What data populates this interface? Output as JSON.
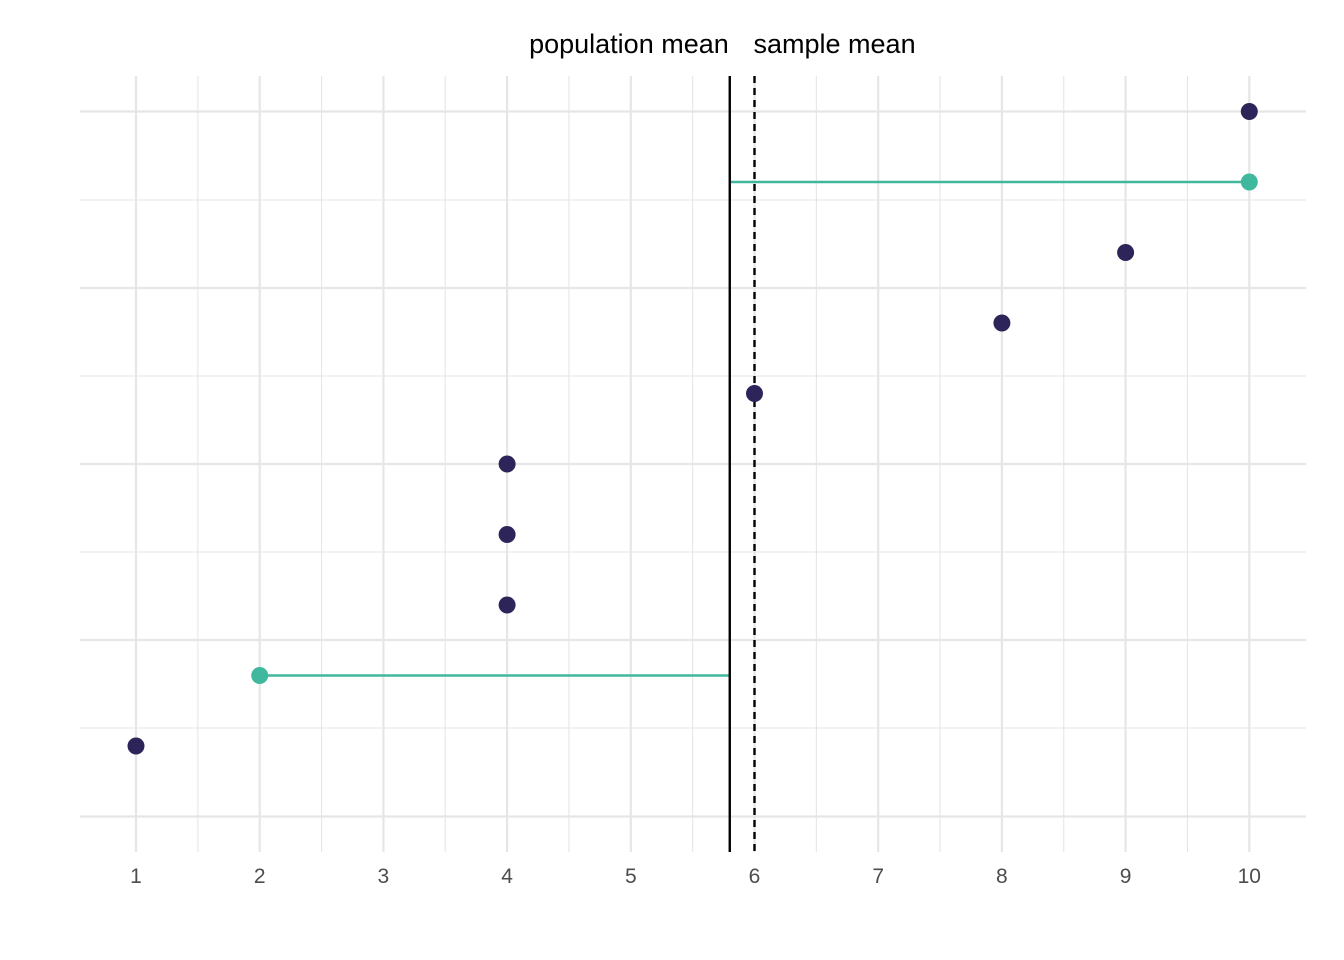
{
  "chart_data": {
    "type": "scatter",
    "title": "",
    "xlabel": "",
    "ylabel": "",
    "xlim": [
      0.55,
      10.45
    ],
    "ylim": [
      0.5,
      10.5
    ],
    "x_ticks": [
      "1",
      "2",
      "3",
      "4",
      "5",
      "6",
      "7",
      "8",
      "9",
      "10"
    ],
    "grid": true,
    "annotations": {
      "population_mean_label": "population mean",
      "sample_mean_label": "sample mean"
    },
    "population_mean": 5.8,
    "sample_mean": 6.0,
    "points": [
      {
        "y": 1,
        "x": 1,
        "highlight": false
      },
      {
        "y": 2,
        "x": 2,
        "highlight": true
      },
      {
        "y": 3,
        "x": 4,
        "highlight": false
      },
      {
        "y": 4,
        "x": 4,
        "highlight": false
      },
      {
        "y": 5,
        "x": 4,
        "highlight": false
      },
      {
        "y": 6,
        "x": 6,
        "highlight": false
      },
      {
        "y": 7,
        "x": 8,
        "highlight": false
      },
      {
        "y": 8,
        "x": 9,
        "highlight": false
      },
      {
        "y": 9,
        "x": 10,
        "highlight": true
      },
      {
        "y": 10,
        "x": 10,
        "highlight": false
      }
    ],
    "colors": {
      "point": "#2d2559",
      "highlight": "#40b89e",
      "grid": "#e6e6e6",
      "mean_line": "#000000"
    }
  }
}
